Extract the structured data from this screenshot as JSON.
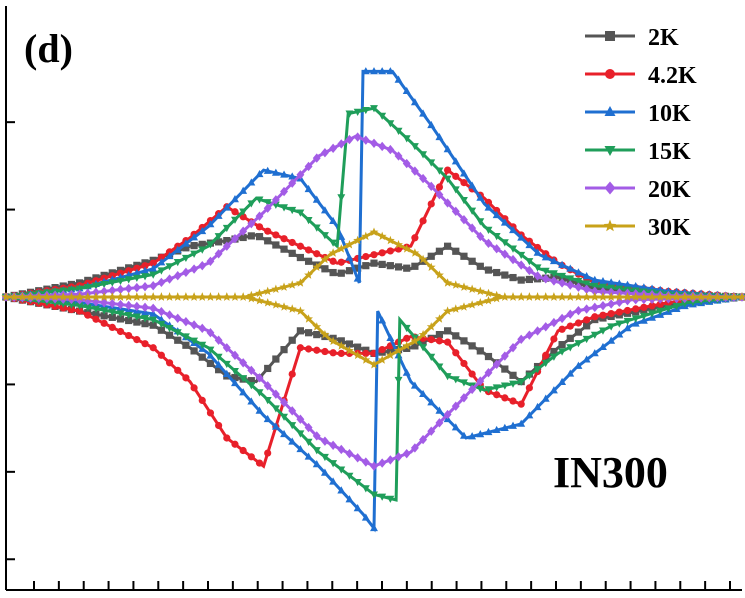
{
  "panel_label": "(d)",
  "sample_label": "IN300",
  "colors": {
    "2K": "#555555",
    "4.2K": "#e8202a",
    "10K": "#1f6fd1",
    "15K": "#1f9e5a",
    "20K": "#a35ce6",
    "30K": "#c8a21a",
    "axis": "#000000"
  },
  "chart_data": {
    "type": "line",
    "title": "",
    "xlabel": "",
    "ylabel": "",
    "xlim": [
      -1,
      1
    ],
    "ylim": [
      -1,
      1
    ],
    "grid": false,
    "legend_position": "top-right",
    "x_ticks_count": 29,
    "y_ticks": [
      0.62,
      0.31,
      0.0,
      -0.31,
      -0.62,
      -0.93
    ],
    "series": [
      {
        "name": "2K",
        "marker": "square",
        "upper": [
          [
            -1,
            0.0
          ],
          [
            -0.8,
            0.05
          ],
          [
            -0.6,
            0.13
          ],
          [
            -0.5,
            0.18
          ],
          [
            -0.4,
            0.2
          ],
          [
            -0.32,
            0.22
          ],
          [
            -0.2,
            0.14
          ],
          [
            -0.1,
            0.08
          ],
          [
            0.0,
            0.12
          ],
          [
            0.1,
            0.1
          ],
          [
            0.2,
            0.18
          ],
          [
            0.3,
            0.1
          ],
          [
            0.4,
            0.06
          ],
          [
            0.5,
            0.07
          ],
          [
            0.6,
            0.03
          ],
          [
            0.8,
            0.01
          ],
          [
            1,
            0.0
          ]
        ],
        "lower": [
          [
            -1,
            0.0
          ],
          [
            -0.8,
            -0.05
          ],
          [
            -0.6,
            -0.1
          ],
          [
            -0.5,
            -0.18
          ],
          [
            -0.4,
            -0.28
          ],
          [
            -0.32,
            -0.3
          ],
          [
            -0.2,
            -0.12
          ],
          [
            -0.1,
            -0.15
          ],
          [
            0.0,
            -0.2
          ],
          [
            0.1,
            -0.18
          ],
          [
            0.2,
            -0.12
          ],
          [
            0.3,
            -0.2
          ],
          [
            0.4,
            -0.3
          ],
          [
            0.5,
            -0.18
          ],
          [
            0.6,
            -0.08
          ],
          [
            0.8,
            -0.03
          ],
          [
            1,
            0.0
          ]
        ]
      },
      {
        "name": "4.2K",
        "marker": "circle",
        "upper": [
          [
            -1,
            0.0
          ],
          [
            -0.8,
            0.04
          ],
          [
            -0.6,
            0.12
          ],
          [
            -0.5,
            0.21
          ],
          [
            -0.4,
            0.32
          ],
          [
            -0.3,
            0.24
          ],
          [
            -0.2,
            0.18
          ],
          [
            -0.1,
            0.12
          ],
          [
            0.0,
            0.15
          ],
          [
            0.1,
            0.18
          ],
          [
            0.2,
            0.45
          ],
          [
            0.3,
            0.35
          ],
          [
            0.4,
            0.22
          ],
          [
            0.5,
            0.12
          ],
          [
            0.6,
            0.05
          ],
          [
            0.8,
            0.02
          ],
          [
            1,
            0.0
          ]
        ],
        "lower": [
          [
            -1,
            0.0
          ],
          [
            -0.8,
            -0.05
          ],
          [
            -0.6,
            -0.18
          ],
          [
            -0.5,
            -0.3
          ],
          [
            -0.4,
            -0.5
          ],
          [
            -0.3,
            -0.6
          ],
          [
            -0.2,
            -0.18
          ],
          [
            -0.1,
            -0.2
          ],
          [
            0.0,
            -0.2
          ],
          [
            0.1,
            -0.14
          ],
          [
            0.2,
            -0.16
          ],
          [
            0.3,
            -0.33
          ],
          [
            0.4,
            -0.38
          ],
          [
            0.5,
            -0.12
          ],
          [
            0.6,
            -0.07
          ],
          [
            0.8,
            -0.02
          ],
          [
            1,
            0.0
          ]
        ]
      },
      {
        "name": "10K",
        "marker": "triangle-up",
        "upper": [
          [
            -1,
            0.0
          ],
          [
            -0.8,
            0.03
          ],
          [
            -0.6,
            0.1
          ],
          [
            -0.45,
            0.25
          ],
          [
            -0.3,
            0.45
          ],
          [
            -0.2,
            0.42
          ],
          [
            -0.1,
            0.25
          ],
          [
            -0.04,
            0.05
          ],
          [
            -0.03,
            0.8
          ],
          [
            0.05,
            0.8
          ],
          [
            0.15,
            0.62
          ],
          [
            0.3,
            0.33
          ],
          [
            0.45,
            0.15
          ],
          [
            0.6,
            0.06
          ],
          [
            0.8,
            0.02
          ],
          [
            1,
            0.0
          ]
        ],
        "lower": [
          [
            -1,
            0.0
          ],
          [
            -0.8,
            -0.02
          ],
          [
            -0.6,
            -0.06
          ],
          [
            -0.45,
            -0.2
          ],
          [
            -0.3,
            -0.42
          ],
          [
            -0.15,
            -0.6
          ],
          [
            -0.03,
            -0.77
          ],
          [
            0.0,
            -0.82
          ],
          [
            0.01,
            -0.05
          ],
          [
            0.1,
            -0.3
          ],
          [
            0.25,
            -0.5
          ],
          [
            0.4,
            -0.45
          ],
          [
            0.55,
            -0.25
          ],
          [
            0.7,
            -0.1
          ],
          [
            0.85,
            -0.03
          ],
          [
            1,
            0.0
          ]
        ]
      },
      {
        "name": "15K",
        "marker": "triangle-down",
        "upper": [
          [
            -1,
            0.0
          ],
          [
            -0.8,
            0.03
          ],
          [
            -0.6,
            0.08
          ],
          [
            -0.45,
            0.18
          ],
          [
            -0.32,
            0.35
          ],
          [
            -0.2,
            0.3
          ],
          [
            -0.1,
            0.18
          ],
          [
            -0.07,
            0.65
          ],
          [
            0.0,
            0.67
          ],
          [
            0.1,
            0.55
          ],
          [
            0.2,
            0.42
          ],
          [
            0.3,
            0.25
          ],
          [
            0.45,
            0.1
          ],
          [
            0.6,
            0.04
          ],
          [
            0.8,
            0.01
          ],
          [
            1,
            0.0
          ]
        ],
        "lower": [
          [
            -1,
            0.0
          ],
          [
            -0.8,
            -0.03
          ],
          [
            -0.6,
            -0.08
          ],
          [
            -0.45,
            -0.18
          ],
          [
            -0.3,
            -0.35
          ],
          [
            -0.15,
            -0.55
          ],
          [
            0.0,
            -0.7
          ],
          [
            0.06,
            -0.72
          ],
          [
            0.07,
            -0.08
          ],
          [
            0.2,
            -0.28
          ],
          [
            0.3,
            -0.33
          ],
          [
            0.4,
            -0.3
          ],
          [
            0.5,
            -0.2
          ],
          [
            0.65,
            -0.1
          ],
          [
            0.85,
            -0.02
          ],
          [
            1,
            0.0
          ]
        ]
      },
      {
        "name": "20K",
        "marker": "diamond",
        "upper": [
          [
            -1,
            0.0
          ],
          [
            -0.8,
            0.01
          ],
          [
            -0.6,
            0.04
          ],
          [
            -0.45,
            0.12
          ],
          [
            -0.3,
            0.3
          ],
          [
            -0.15,
            0.5
          ],
          [
            -0.05,
            0.57
          ],
          [
            0.05,
            0.52
          ],
          [
            0.15,
            0.4
          ],
          [
            0.3,
            0.2
          ],
          [
            0.45,
            0.07
          ],
          [
            0.6,
            0.02
          ],
          [
            0.8,
            0.005
          ],
          [
            1,
            0.0
          ]
        ],
        "lower": [
          [
            -1,
            0.0
          ],
          [
            -0.8,
            -0.01
          ],
          [
            -0.6,
            -0.04
          ],
          [
            -0.45,
            -0.12
          ],
          [
            -0.3,
            -0.3
          ],
          [
            -0.15,
            -0.5
          ],
          [
            0.0,
            -0.6
          ],
          [
            0.1,
            -0.55
          ],
          [
            0.25,
            -0.35
          ],
          [
            0.4,
            -0.15
          ],
          [
            0.55,
            -0.05
          ],
          [
            0.7,
            -0.01
          ],
          [
            1,
            0.0
          ]
        ]
      },
      {
        "name": "30K",
        "marker": "star",
        "upper": [
          [
            -1,
            0.0
          ],
          [
            -0.6,
            0.0
          ],
          [
            -0.35,
            0.0
          ],
          [
            -0.2,
            0.05
          ],
          [
            -0.12,
            0.15
          ],
          [
            0.0,
            0.23
          ],
          [
            0.12,
            0.15
          ],
          [
            0.2,
            0.05
          ],
          [
            0.35,
            0.0
          ],
          [
            0.6,
            0.0
          ],
          [
            1,
            0.0
          ]
        ],
        "lower": [
          [
            -1,
            0.0
          ],
          [
            -0.6,
            0.0
          ],
          [
            -0.35,
            0.0
          ],
          [
            -0.2,
            -0.05
          ],
          [
            -0.12,
            -0.15
          ],
          [
            0.0,
            -0.24
          ],
          [
            0.12,
            -0.15
          ],
          [
            0.2,
            -0.05
          ],
          [
            0.35,
            0.0
          ],
          [
            0.6,
            0.0
          ],
          [
            1,
            0.0
          ]
        ]
      }
    ]
  }
}
